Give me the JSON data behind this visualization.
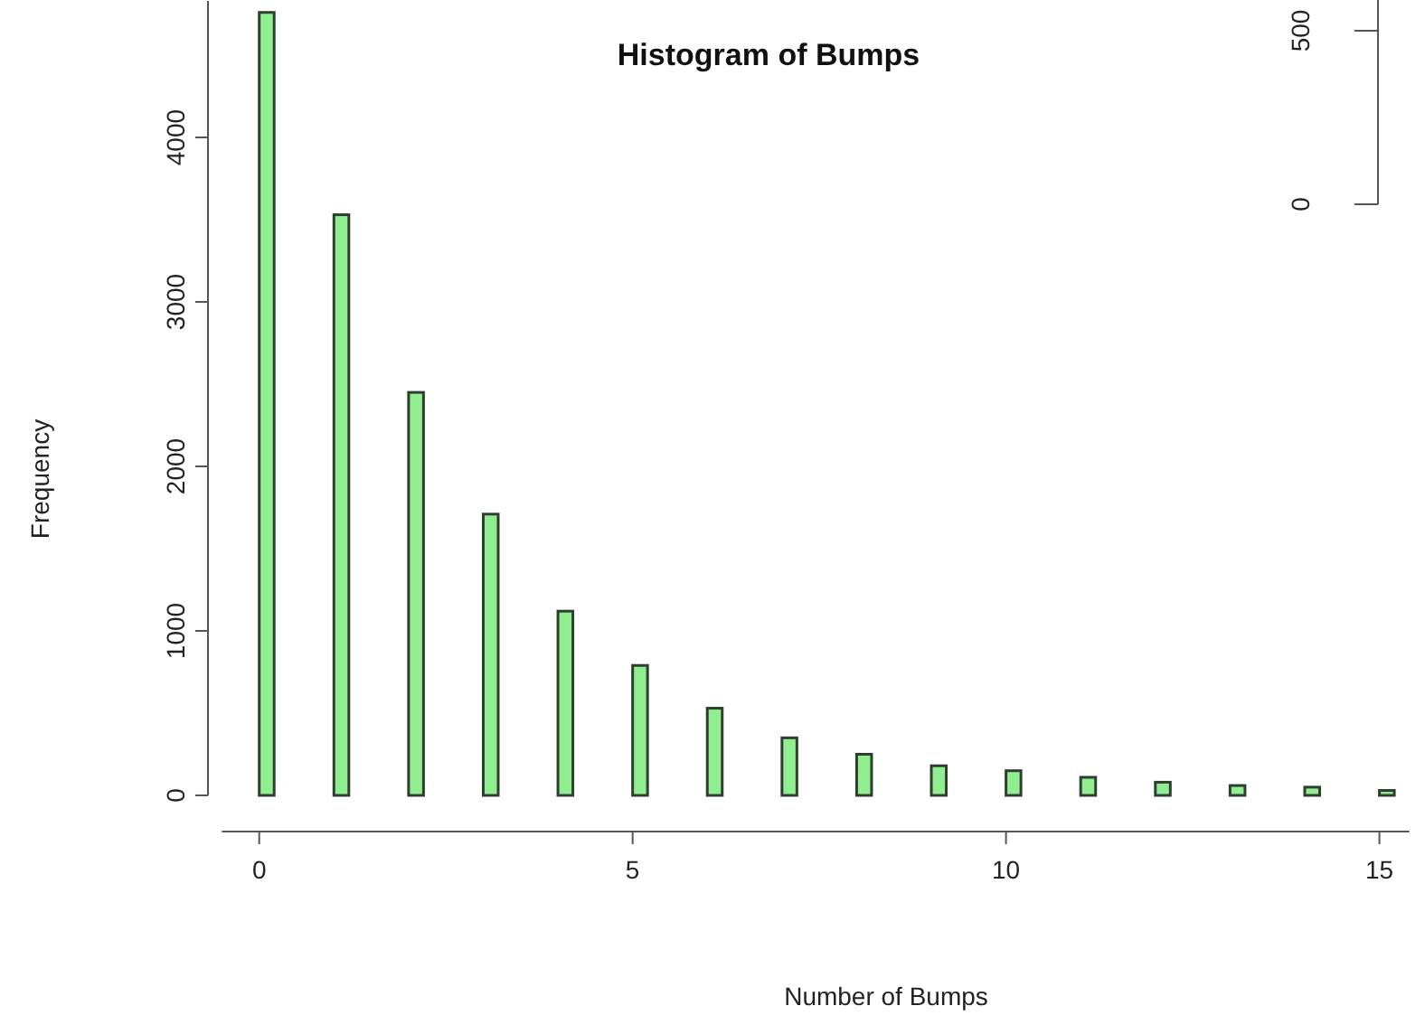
{
  "chart_data": [
    {
      "type": "histogram",
      "title": "Histogram of Bumps",
      "xlabel": "Number of Bumps",
      "ylabel": "Frequency",
      "color": "#90ee90",
      "bins": [
        0,
        0.2,
        1,
        1.2,
        2,
        2.2,
        3,
        3.2,
        4,
        4.2,
        5,
        5.2,
        6,
        6.2,
        7,
        7.2,
        8,
        8.2,
        9,
        9.2,
        10,
        10.2,
        11,
        11.2,
        12,
        12.2,
        13,
        13.2,
        14,
        14.2,
        15,
        15.2
      ],
      "values": [
        4760,
        0,
        3530,
        0,
        2450,
        0,
        1710,
        0,
        1120,
        0,
        790,
        0,
        530,
        0,
        350,
        0,
        250,
        0,
        180,
        0,
        150,
        0,
        110,
        0,
        80,
        0,
        60,
        0,
        50,
        0,
        30
      ],
      "xlim": [
        -0.5,
        15.4
      ],
      "xticks": [
        0,
        5,
        10,
        15
      ],
      "ylim": [
        0,
        4830
      ],
      "yticks": [
        0,
        1000,
        2000,
        3000,
        4000
      ],
      "grid": false
    },
    {
      "type": "other",
      "annotations": [
        "500",
        "0"
      ]
    }
  ]
}
